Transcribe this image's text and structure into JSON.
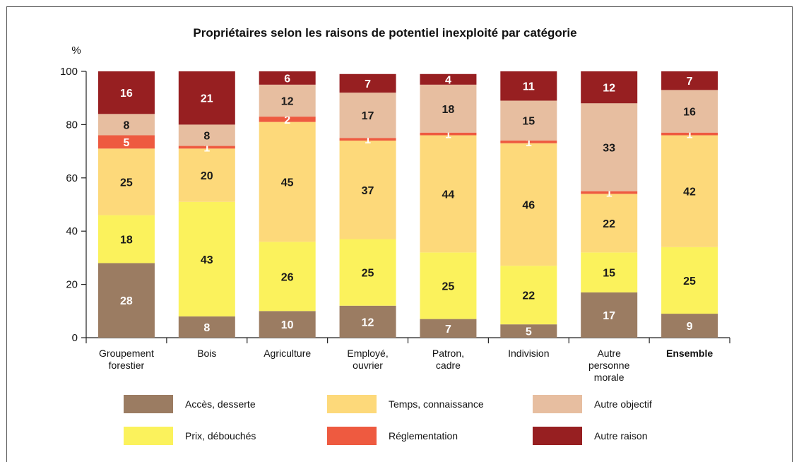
{
  "chart_data": {
    "type": "bar",
    "stacked": true,
    "title": "Propriétaires selon les raisons de potentiel inexploité par catégorie",
    "ylabel": "%",
    "ylim": [
      0,
      100
    ],
    "yticks": [
      0,
      20,
      40,
      60,
      80,
      100
    ],
    "categories": [
      [
        "Groupement",
        "forestier"
      ],
      [
        "Bois"
      ],
      [
        "Agriculture"
      ],
      [
        "Employé,",
        "ouvrier"
      ],
      [
        "Patron,",
        "cadre"
      ],
      [
        "Indivision"
      ],
      [
        "Autre",
        "personne",
        "morale"
      ],
      [
        "Ensemble"
      ]
    ],
    "bold_categories": [
      7
    ],
    "series": [
      {
        "name": "Accès, desserte",
        "color": "#9b7c62",
        "label_color": "#ffffff",
        "values": [
          28,
          8,
          10,
          12,
          7,
          5,
          17,
          9
        ]
      },
      {
        "name": "Prix, débouchés",
        "color": "#fbf25c",
        "label_color": "#1a1a1a",
        "values": [
          18,
          43,
          26,
          25,
          25,
          22,
          15,
          25
        ]
      },
      {
        "name": "Temps, connaissance",
        "color": "#fdd97a",
        "label_color": "#1a1a1a",
        "values": [
          25,
          20,
          45,
          37,
          44,
          46,
          22,
          42
        ]
      },
      {
        "name": "Réglementation",
        "color": "#ee5a40",
        "label_color": "#ffffff",
        "values": [
          5,
          1,
          2,
          1,
          1,
          1,
          1,
          1
        ]
      },
      {
        "name": "Autre objectif",
        "color": "#e7bea0",
        "label_color": "#1a1a1a",
        "values": [
          8,
          8,
          12,
          17,
          18,
          15,
          33,
          16
        ]
      },
      {
        "name": "Autre raison",
        "color": "#971f21",
        "label_color": "#ffffff",
        "values": [
          16,
          21,
          6,
          7,
          4,
          11,
          12,
          7
        ]
      }
    ],
    "legend_position": "bottom",
    "grid": false
  }
}
